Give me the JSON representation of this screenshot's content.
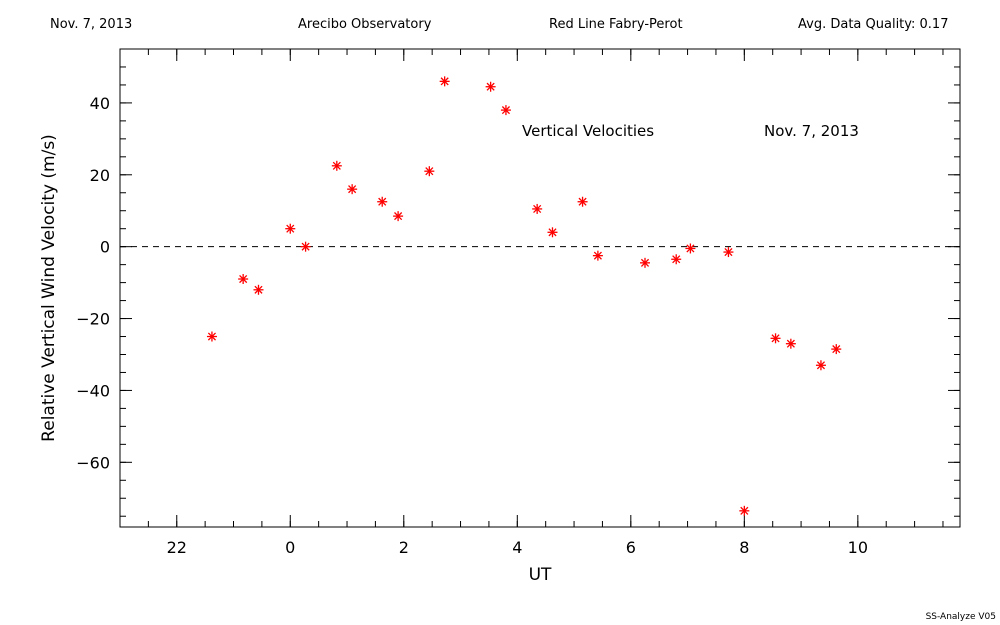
{
  "header": {
    "date": "Nov. 7, 2013",
    "site": "Arecibo Observatory",
    "instrument": "Red Line Fabry-Perot",
    "quality": "Avg. Data Quality: 0.17"
  },
  "footer": "SS-Analyze V05",
  "colors": {
    "points": "#ff0000",
    "axes": "#000000"
  },
  "chart_data": {
    "type": "scatter",
    "title": "",
    "xlabel": "UT",
    "ylabel": "Relative Vertical Wind Velocity (m/s)",
    "xlim": [
      21.0,
      11.8
    ],
    "ylim": [
      -78,
      55
    ],
    "x_ticks": [
      22,
      0,
      2,
      4,
      6,
      8,
      10
    ],
    "x_tick_labels": [
      "22",
      "0",
      "2",
      "4",
      "6",
      "8",
      "10"
    ],
    "y_ticks": [
      40,
      20,
      0,
      -20,
      -40,
      -60
    ],
    "y_tick_labels": [
      "40",
      "20",
      "0",
      "−20",
      "−40",
      "−60"
    ],
    "zero_line": true,
    "annotations": [
      "Vertical Velocities",
      "Nov. 7, 2013"
    ],
    "series": [
      {
        "marker": "asterisk",
        "points": [
          [
            22.62,
            -25
          ],
          [
            23.17,
            -9
          ],
          [
            23.44,
            -12
          ],
          [
            0.0,
            5
          ],
          [
            0.27,
            0
          ],
          [
            0.82,
            22.5
          ],
          [
            1.09,
            16
          ],
          [
            1.62,
            12.5
          ],
          [
            1.9,
            8.5
          ],
          [
            2.45,
            21
          ],
          [
            2.72,
            46
          ],
          [
            3.53,
            44.5
          ],
          [
            3.8,
            38
          ],
          [
            4.35,
            10.5
          ],
          [
            4.62,
            4
          ],
          [
            5.15,
            12.5
          ],
          [
            5.42,
            -2.5
          ],
          [
            6.25,
            -4.5
          ],
          [
            6.8,
            -3.5
          ],
          [
            7.05,
            -0.5
          ],
          [
            7.72,
            -1.5
          ],
          [
            8.0,
            -73.5
          ],
          [
            8.55,
            -25.5
          ],
          [
            8.82,
            -27
          ],
          [
            9.35,
            -33
          ],
          [
            9.62,
            -28.5
          ]
        ]
      }
    ]
  }
}
